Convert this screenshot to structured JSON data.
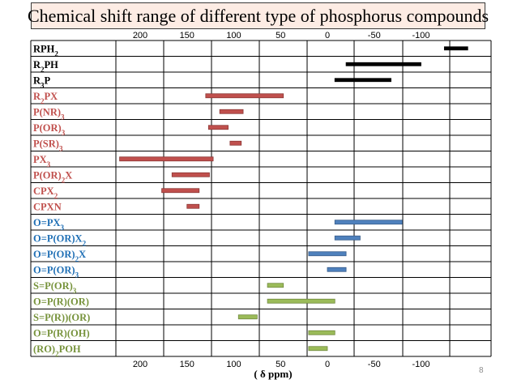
{
  "title": "Chemical shift range of different type of phosphorus compounds",
  "page_number": "8",
  "colors": {
    "black": "#000000",
    "red_fill": "#c0504d",
    "red_stroke": "#8c3836",
    "blue_fill": "#4f81bd",
    "blue_stroke": "#385d8a",
    "green_fill": "#9bbb59",
    "green_stroke": "#71893f",
    "label_black": "#000000",
    "label_red": "#c0504d",
    "label_blue": "#1f6fb5",
    "label_green": "#77933c"
  },
  "chart_data": {
    "type": "bar",
    "orientation": "horizontal-range",
    "xlabel": "( δ  ppm)",
    "x_ticks": [
      "200",
      "150",
      "100",
      "50",
      "0",
      "-50",
      "-100"
    ],
    "x_tick_values": [
      200,
      150,
      100,
      50,
      0,
      -50,
      -100
    ],
    "xlim": [
      223,
      -150
    ],
    "x_reversed": true,
    "grid": true,
    "categories": [
      {
        "label": [
          "RPH",
          {
            "sub": "2"
          }
        ],
        "range": [
          -125,
          -150
        ],
        "group": "black"
      },
      {
        "label": [
          "R",
          {
            "sub": "2"
          },
          "PH"
        ],
        "range": [
          -20,
          -100
        ],
        "group": "black"
      },
      {
        "label": [
          "R",
          {
            "sub": "3"
          },
          "P"
        ],
        "range": [
          -8,
          -68
        ],
        "group": "black"
      },
      {
        "label": [
          "R",
          {
            "sub": "2"
          },
          "PX"
        ],
        "range": [
          130,
          47
        ],
        "group": "red"
      },
      {
        "label": [
          "P(NR)",
          {
            "sub": "3"
          }
        ],
        "range": [
          115,
          90
        ],
        "group": "red"
      },
      {
        "label": [
          "P(OR)",
          {
            "sub": "3"
          }
        ],
        "range": [
          127,
          106
        ],
        "group": "red"
      },
      {
        "label": [
          "P(SR)",
          {
            "sub": "3"
          }
        ],
        "range": [
          104,
          92
        ],
        "group": "red"
      },
      {
        "label": [
          "PX",
          {
            "sub": "3"
          }
        ],
        "range": [
          222,
          122
        ],
        "group": "red"
      },
      {
        "label": [
          "P(OR)",
          {
            "sub": "2"
          },
          "X"
        ],
        "range": [
          166,
          126
        ],
        "group": "red"
      },
      {
        "label": [
          "CPX",
          {
            "sub": "2"
          }
        ],
        "range": [
          177,
          137
        ],
        "group": "red"
      },
      {
        "label": [
          "CPXN"
        ],
        "range": [
          150,
          137
        ],
        "group": "red"
      },
      {
        "label": [
          "O=PX",
          {
            "sub": "3"
          }
        ],
        "range": [
          -8,
          -80
        ],
        "group": "blue"
      },
      {
        "label": [
          "O=P(OR)X",
          {
            "sub": "2"
          }
        ],
        "range": [
          -8,
          -35
        ],
        "group": "blue"
      },
      {
        "label": [
          "O=P(OR)",
          {
            "sub": "2"
          },
          "X"
        ],
        "range": [
          20,
          -20
        ],
        "group": "blue"
      },
      {
        "label": [
          "O=P(OR)",
          {
            "sub": "3"
          }
        ],
        "range": [
          0,
          -20
        ],
        "group": "blue"
      },
      {
        "label": [
          "S=P(OR)",
          {
            "sub": "3"
          }
        ],
        "range": [
          64,
          47
        ],
        "group": "green"
      },
      {
        "label": [
          "O=P(R)(OR)"
        ],
        "range": [
          64,
          -8
        ],
        "group": "green"
      },
      {
        "label": [
          "S=P(R))(OR)"
        ],
        "range": [
          95,
          75
        ],
        "group": "green"
      },
      {
        "label": [
          "O=P(R)(OH)"
        ],
        "range": [
          20,
          -8
        ],
        "group": "green"
      },
      {
        "label": [
          "(RO)",
          {
            "sub": "2"
          },
          "POH"
        ],
        "range": [
          20,
          0
        ],
        "group": "green"
      }
    ]
  }
}
